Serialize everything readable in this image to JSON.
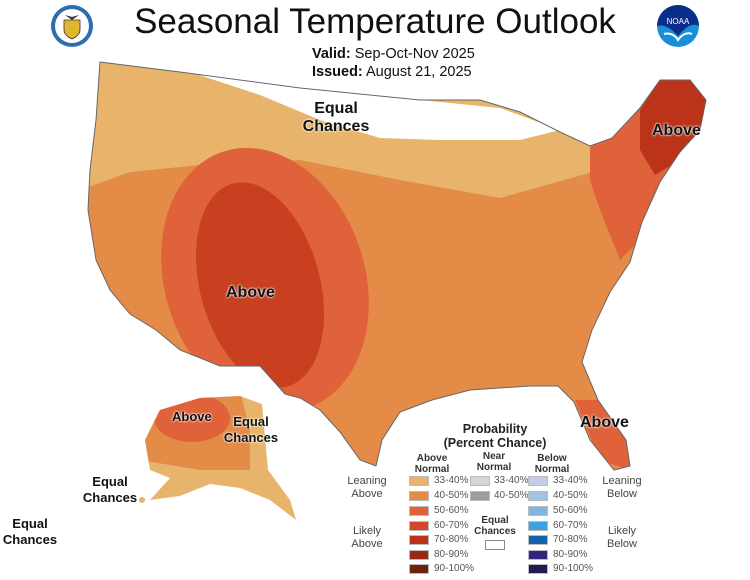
{
  "header": {
    "title": "Seasonal Temperature Outlook",
    "valid_label": "Valid:",
    "valid_value": "Sep-Oct-Nov 2025",
    "issued_label": "Issued:",
    "issued_value": "August 21, 2025",
    "left_logo": "department-of-commerce-seal",
    "right_logo": "noaa-logo",
    "right_logo_text": "NOAA"
  },
  "map_labels": {
    "north_ec": "Equal Chances",
    "southwest": "Above",
    "northeast": "Above",
    "florida": "Above",
    "alaska_above": "Above",
    "alaska_ec": "Equal Chances",
    "aleutian_ec": "Equal Chances",
    "hawaii_ec": "Equal Chances"
  },
  "legend": {
    "title": "Probability",
    "subtitle": "(Percent Chance)",
    "col_above": "Above Normal",
    "col_near": "Near Normal",
    "col_below": "Below Normal",
    "leaning_above": "Leaning Above",
    "likely_above": "Likely Above",
    "leaning_below": "Leaning Below",
    "likely_below": "Likely Below",
    "equal_chances": "Equal Chances",
    "above": [
      {
        "label": "33-40%",
        "color": "#e8b46c"
      },
      {
        "label": "40-50%",
        "color": "#e58b48"
      },
      {
        "label": "50-60%",
        "color": "#e0623a"
      },
      {
        "label": "60-70%",
        "color": "#d4432a"
      },
      {
        "label": "70-80%",
        "color": "#bb3419"
      },
      {
        "label": "80-90%",
        "color": "#972a14"
      },
      {
        "label": "90-100%",
        "color": "#6e1f10"
      }
    ],
    "near": [
      {
        "label": "33-40%",
        "color": "#d6d6d6"
      },
      {
        "label": "40-50%",
        "color": "#9c9c9c"
      }
    ],
    "below": [
      {
        "label": "33-40%",
        "color": "#c3cde6"
      },
      {
        "label": "40-50%",
        "color": "#a4c2e4"
      },
      {
        "label": "50-60%",
        "color": "#7fb5e2"
      },
      {
        "label": "60-70%",
        "color": "#3aa4e2"
      },
      {
        "label": "70-80%",
        "color": "#1563ad"
      },
      {
        "label": "80-90%",
        "color": "#33237f"
      },
      {
        "label": "90-100%",
        "color": "#221a52"
      }
    ]
  }
}
